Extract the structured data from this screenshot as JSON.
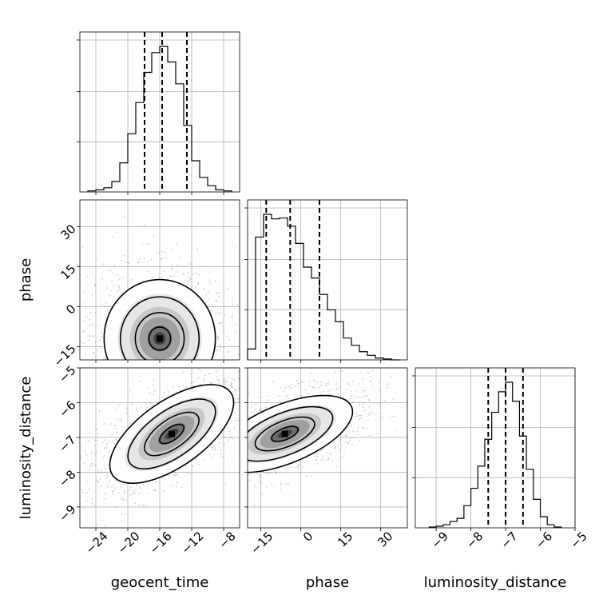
{
  "chart_data": {
    "type": "corner",
    "parameters": [
      "geocent_time",
      "phase",
      "luminosity_distance"
    ],
    "grid": true,
    "axes": {
      "geocent_time": {
        "range": [
          -26,
          -6
        ],
        "ticks": [
          -24,
          -20,
          -16,
          -12,
          -8
        ],
        "tick_labels": [
          "−24",
          "−20",
          "−16",
          "−12",
          "−8"
        ]
      },
      "phase": {
        "range": [
          -20,
          40
        ],
        "ticks": [
          -15,
          0,
          15,
          30
        ],
        "tick_labels": [
          "−15",
          "0",
          "15",
          "30"
        ]
      },
      "luminosity_distance": {
        "range": [
          -9.6,
          -5
        ],
        "ticks": [
          -9,
          -8,
          -7,
          -6,
          -5
        ],
        "tick_labels": [
          "−9",
          "−8",
          "−7",
          "−6",
          "−5"
        ]
      }
    },
    "marginals": [
      {
        "param": "geocent_time",
        "quantiles": [
          -17.9,
          -15.7,
          -12.6
        ],
        "bin_edges": [
          -25,
          -24,
          -23,
          -22,
          -21,
          -20,
          -19,
          -18,
          -17,
          -16,
          -15,
          -14,
          -13,
          -12,
          -11,
          -10,
          -9,
          -8,
          -7
        ],
        "counts": [
          1,
          2,
          4,
          10,
          28,
          56,
          86,
          115,
          134,
          140,
          125,
          104,
          64,
          30,
          14,
          6,
          2,
          1
        ]
      },
      {
        "param": "phase",
        "quantiles": [
          -13,
          -4,
          7
        ],
        "bin_edges": [
          -20,
          -17,
          -14,
          -11,
          -8,
          -5,
          -2,
          1,
          4,
          7,
          10,
          13,
          16,
          19,
          22,
          25,
          28,
          31,
          34,
          37
        ],
        "counts": [
          12,
          135,
          160,
          155,
          156,
          147,
          128,
          102,
          90,
          72,
          55,
          42,
          24,
          16,
          9,
          5,
          2,
          1,
          0
        ]
      },
      {
        "param": "luminosity_distance",
        "quantiles": [
          -7.5,
          -7,
          -6.5
        ],
        "bin_edges": [
          -9.2,
          -9.0,
          -8.8,
          -8.6,
          -8.4,
          -8.2,
          -8.0,
          -7.8,
          -7.6,
          -7.4,
          -7.2,
          -7.0,
          -6.8,
          -6.6,
          -6.4,
          -6.2,
          -6.0,
          -5.8,
          -5.6,
          -5.4
        ],
        "counts": [
          1,
          2,
          4,
          8,
          12,
          28,
          50,
          78,
          112,
          146,
          172,
          184,
          160,
          116,
          74,
          36,
          14,
          4,
          1
        ]
      }
    ],
    "joint": [
      {
        "x": "geocent_time",
        "y": "phase",
        "peak": [
          -16,
          -12
        ],
        "levels": 4
      },
      {
        "x": "geocent_time",
        "y": "luminosity_distance",
        "peak": [
          -14.5,
          -6.9
        ],
        "levels": 4
      },
      {
        "x": "phase",
        "y": "luminosity_distance",
        "peak": [
          -6,
          -6.9
        ],
        "levels": 4
      }
    ]
  }
}
